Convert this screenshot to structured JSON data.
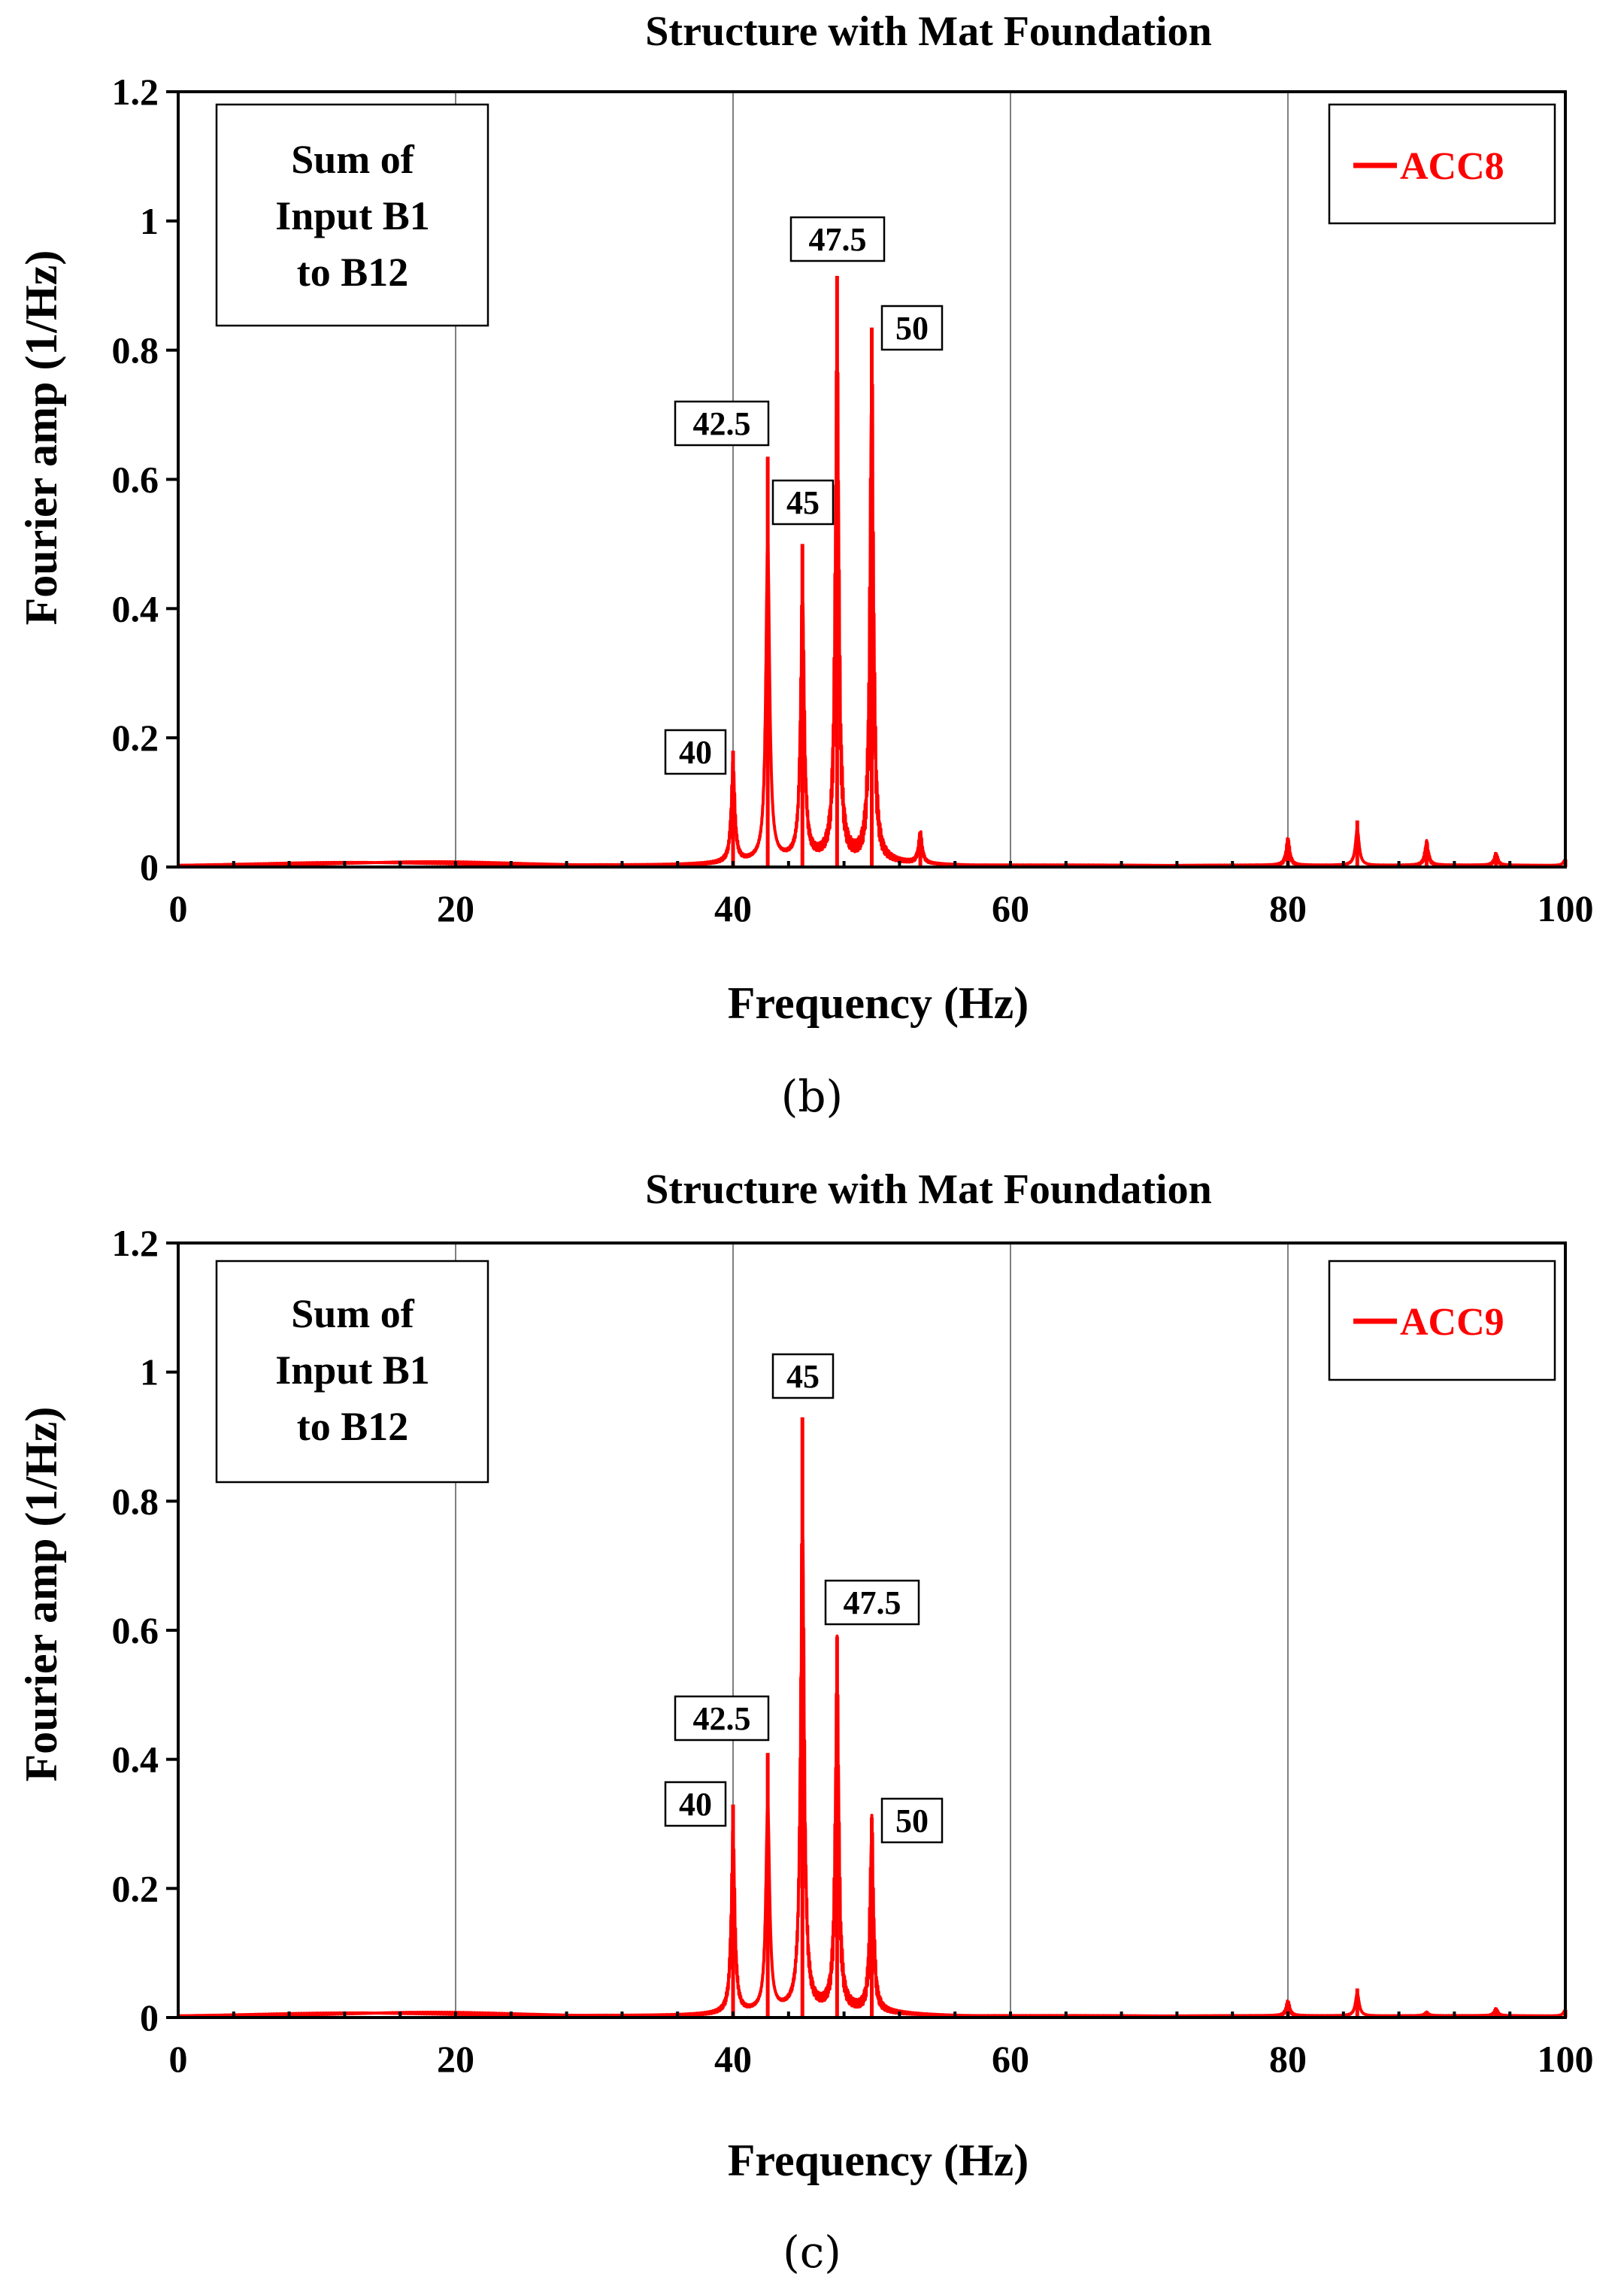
{
  "chart_data": [
    {
      "type": "line",
      "panel": "b",
      "title": "Structure with Mat Foundation",
      "xlabel": "Frequency (Hz)",
      "ylabel": "Fourier amp (1/Hz)",
      "xlim": [
        0,
        100
      ],
      "ylim": [
        0,
        1.2
      ],
      "xticks": [
        "0",
        "20",
        "40",
        "60",
        "80",
        "100"
      ],
      "yticks": [
        "0",
        "0.2",
        "0.4",
        "0.6",
        "0.8",
        "1",
        "1.2"
      ],
      "grid": "vertical",
      "note": [
        "Sum of",
        "Input B1",
        "to B12"
      ],
      "legend": "ACC8",
      "caption": "(b)",
      "series": [
        {
          "name": "ACC8",
          "color": "#ff0000",
          "peaks": [
            {
              "x": 40,
              "y": 0.18
            },
            {
              "x": 42.5,
              "y": 0.635
            },
            {
              "x": 45,
              "y": 0.5
            },
            {
              "x": 47.5,
              "y": 0.915
            },
            {
              "x": 50,
              "y": 0.835
            },
            {
              "x": 53.5,
              "y": 0.055
            },
            {
              "x": 80,
              "y": 0.045
            },
            {
              "x": 85,
              "y": 0.072
            },
            {
              "x": 90,
              "y": 0.04
            },
            {
              "x": 95,
              "y": 0.02
            },
            {
              "x": 100,
              "y": 0.012
            }
          ]
        }
      ],
      "annotations": [
        {
          "text": "40",
          "x": 40
        },
        {
          "text": "42.5",
          "x": 42.5
        },
        {
          "text": "45",
          "x": 45
        },
        {
          "text": "47.5",
          "x": 47.5
        },
        {
          "text": "50",
          "x": 50
        }
      ]
    },
    {
      "type": "line",
      "panel": "c",
      "title": "Structure with Mat Foundation",
      "xlabel": "Frequency (Hz)",
      "ylabel": "Fourier amp (1/Hz)",
      "xlim": [
        0,
        100
      ],
      "ylim": [
        0,
        1.2
      ],
      "xticks": [
        "0",
        "20",
        "40",
        "60",
        "80",
        "100"
      ],
      "yticks": [
        "0",
        "0.2",
        "0.4",
        "0.6",
        "0.8",
        "1",
        "1.2"
      ],
      "grid": "vertical",
      "note": [
        "Sum of",
        "Input B1",
        "to B12"
      ],
      "legend": "ACC9",
      "caption": "(c)",
      "series": [
        {
          "name": "ACC9",
          "color": "#ff0000",
          "peaks": [
            {
              "x": 40,
              "y": 0.33
            },
            {
              "x": 42.5,
              "y": 0.41
            },
            {
              "x": 45,
              "y": 0.93
            },
            {
              "x": 47.5,
              "y": 0.59
            },
            {
              "x": 50,
              "y": 0.31
            },
            {
              "x": 80,
              "y": 0.025
            },
            {
              "x": 85,
              "y": 0.045
            },
            {
              "x": 90,
              "y": 0.006
            },
            {
              "x": 95,
              "y": 0.012
            },
            {
              "x": 100,
              "y": 0.012
            }
          ]
        }
      ],
      "annotations": [
        {
          "text": "40",
          "x": 40
        },
        {
          "text": "42.5",
          "x": 42.5
        },
        {
          "text": "45",
          "x": 45
        },
        {
          "text": "47.5",
          "x": 47.5
        },
        {
          "text": "50",
          "x": 50
        }
      ]
    }
  ]
}
